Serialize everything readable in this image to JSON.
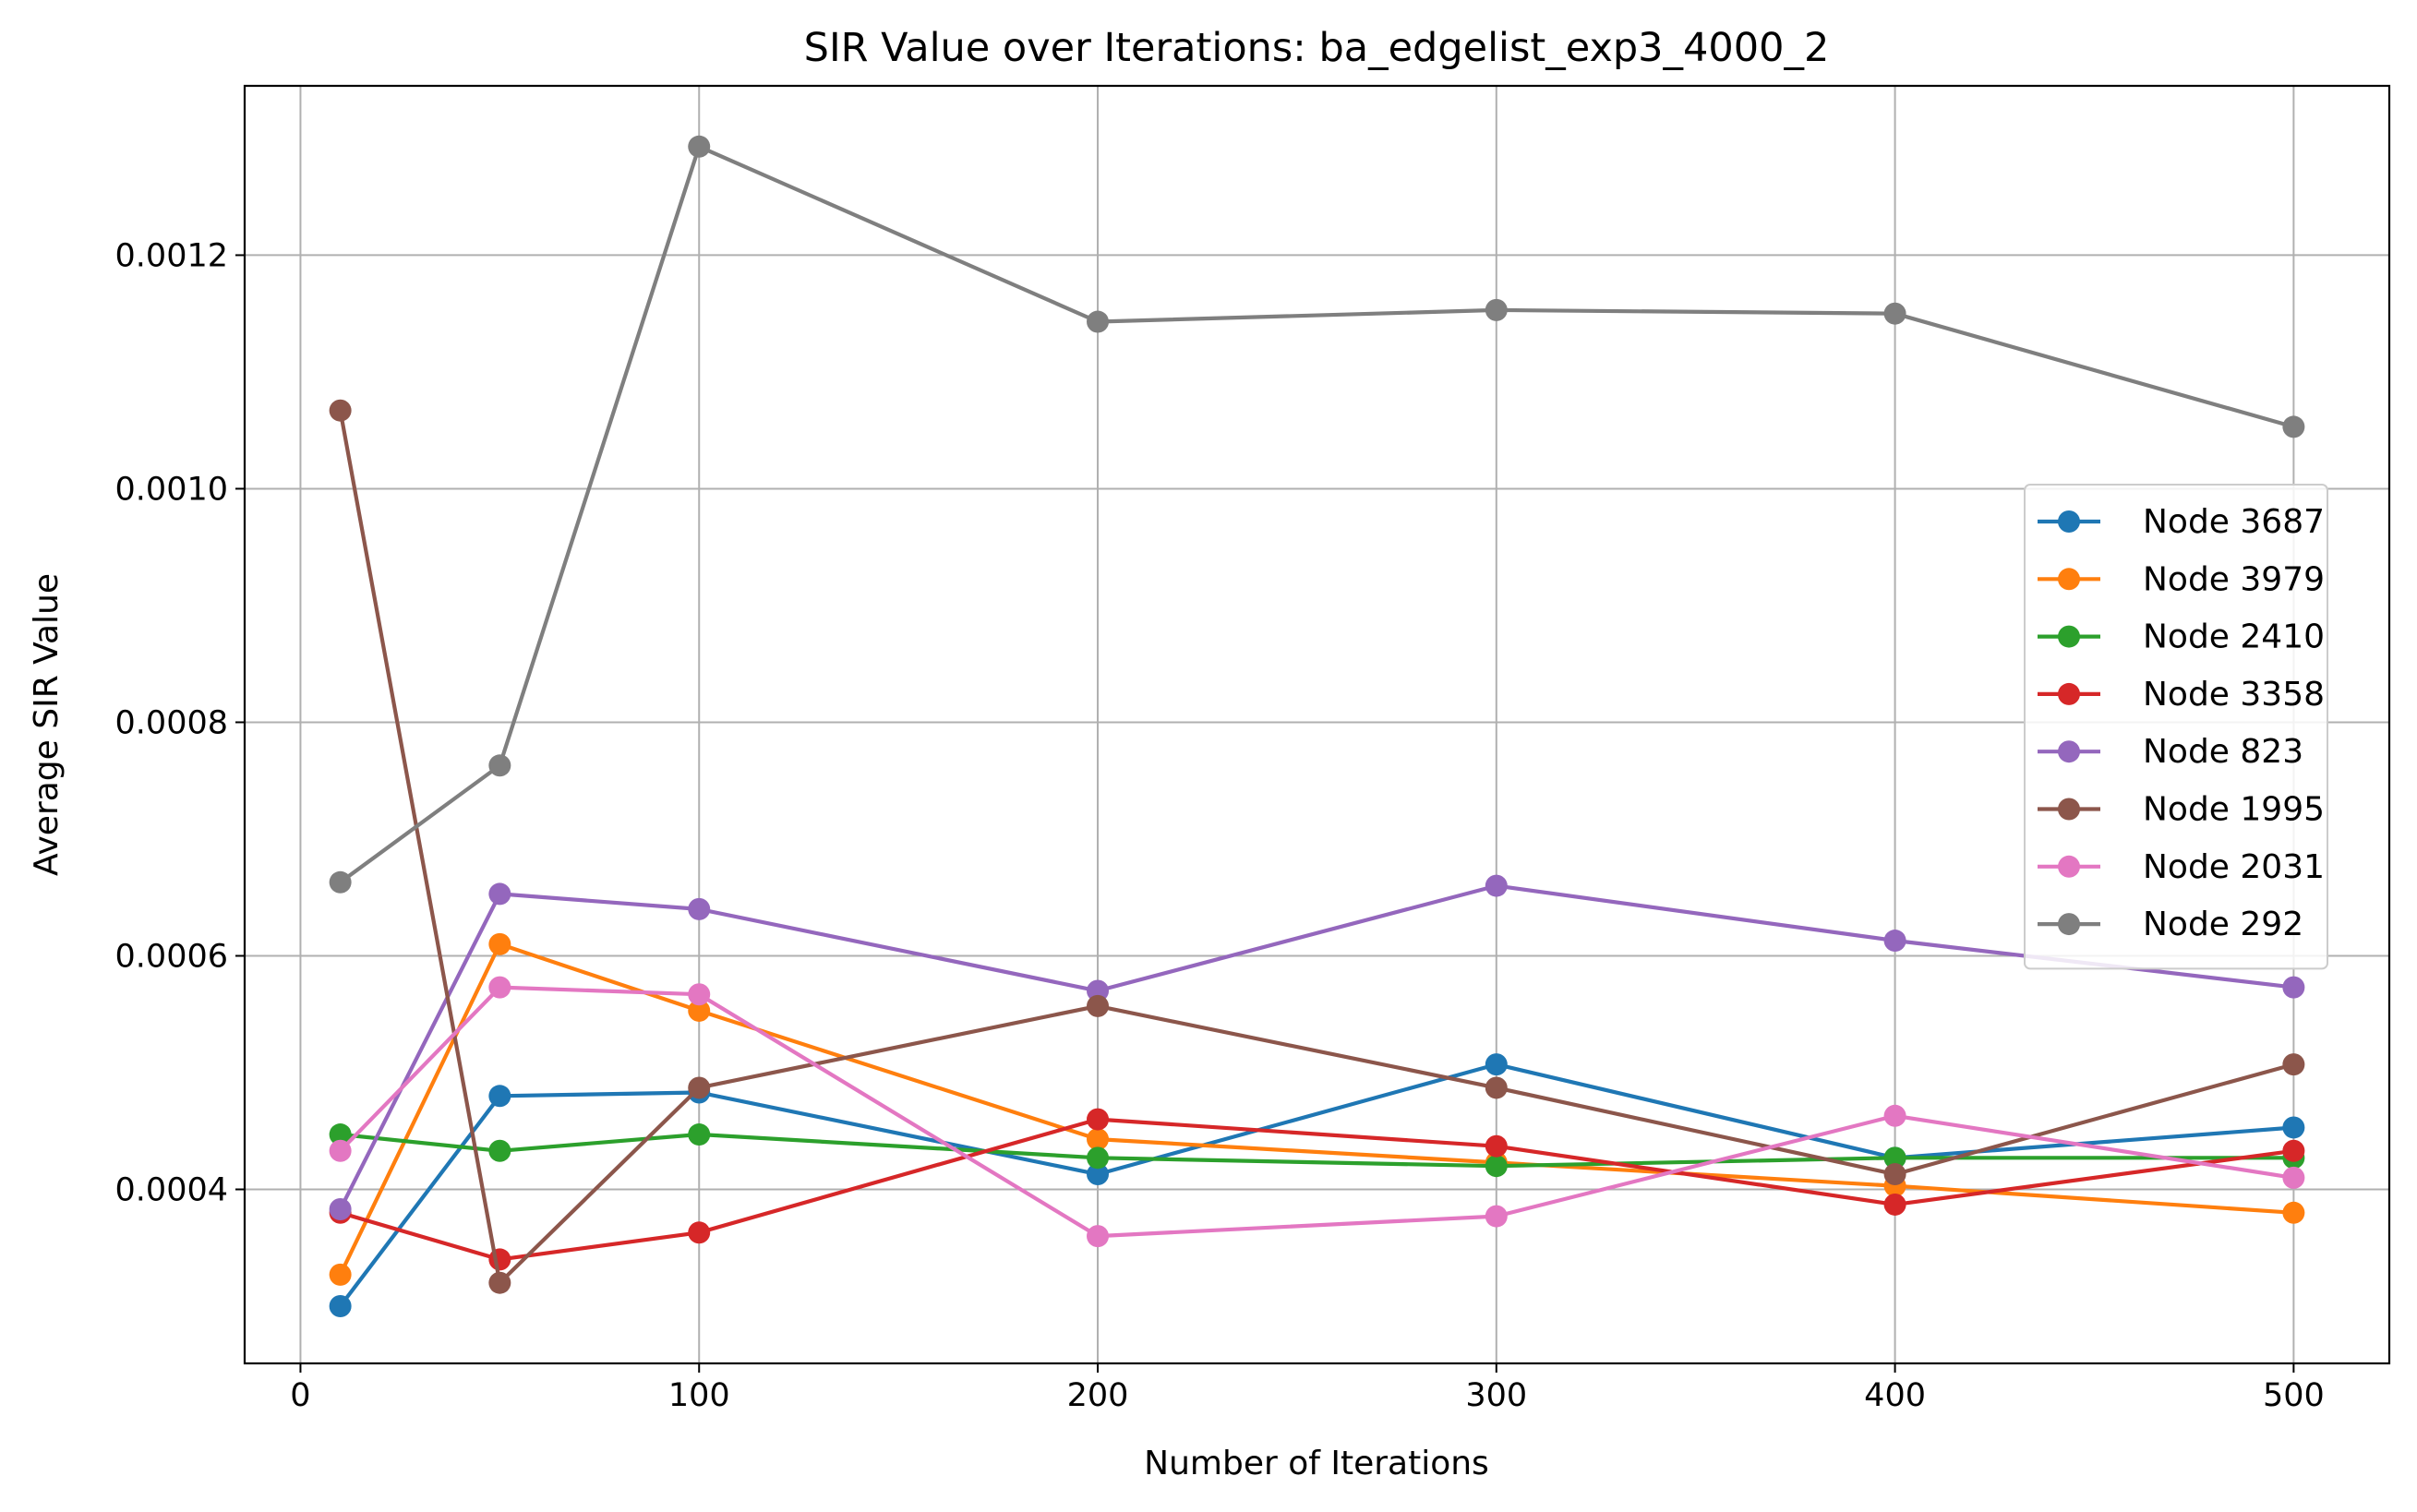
{
  "chart_data": {
    "type": "line",
    "title": "SIR Value over Iterations: ba_edgelist_exp3_4000_2",
    "xlabel": "Number of Iterations",
    "ylabel": "Average SIR Value",
    "x": [
      10,
      50,
      100,
      200,
      300,
      400,
      500
    ],
    "xlim": [
      -14,
      524
    ],
    "ylim": [
      0.000251,
      0.001345
    ],
    "xticks": [
      0,
      100,
      200,
      300,
      400,
      500
    ],
    "xtick_labels": [
      "0",
      "100",
      "200",
      "300",
      "400",
      "500"
    ],
    "yticks": [
      0.0004,
      0.0006,
      0.0008,
      0.001,
      0.0012
    ],
    "ytick_labels": [
      "0.0004",
      "0.0006",
      "0.0008",
      "0.0010",
      "0.0012"
    ],
    "grid": true,
    "legend_position": "center-right",
    "series": [
      {
        "name": "Node 3687",
        "color": "#1f77b4",
        "values": [
          0.0003,
          0.00048,
          0.000483,
          0.000413,
          0.000507,
          0.000427,
          0.000453
        ]
      },
      {
        "name": "Node 3979",
        "color": "#ff7f0e",
        "values": [
          0.000327,
          0.00061,
          0.000553,
          0.000443,
          0.000423,
          0.000403,
          0.00038
        ]
      },
      {
        "name": "Node 2410",
        "color": "#2ca02c",
        "values": [
          0.000447,
          0.000433,
          0.000447,
          0.000427,
          0.00042,
          0.000427,
          0.000427
        ]
      },
      {
        "name": "Node 3358",
        "color": "#d62728",
        "values": [
          0.00038,
          0.00034,
          0.000363,
          0.00046,
          0.000437,
          0.000387,
          0.000433
        ]
      },
      {
        "name": "Node 823",
        "color": "#9467bd",
        "values": [
          0.000383,
          0.000653,
          0.00064,
          0.00057,
          0.00066,
          0.000613,
          0.000573
        ]
      },
      {
        "name": "Node 1995",
        "color": "#8c564b",
        "values": [
          0.001067,
          0.00032,
          0.000487,
          0.000557,
          0.000487,
          0.000413,
          0.000507
        ]
      },
      {
        "name": "Node 2031",
        "color": "#e377c2",
        "values": [
          0.000433,
          0.000573,
          0.000567,
          0.00036,
          0.000377,
          0.000463,
          0.00041
        ]
      },
      {
        "name": "Node 292",
        "color": "#7f7f7f",
        "values": [
          0.000663,
          0.000763,
          0.001293,
          0.001143,
          0.001153,
          0.00115,
          0.001053
        ]
      }
    ]
  }
}
